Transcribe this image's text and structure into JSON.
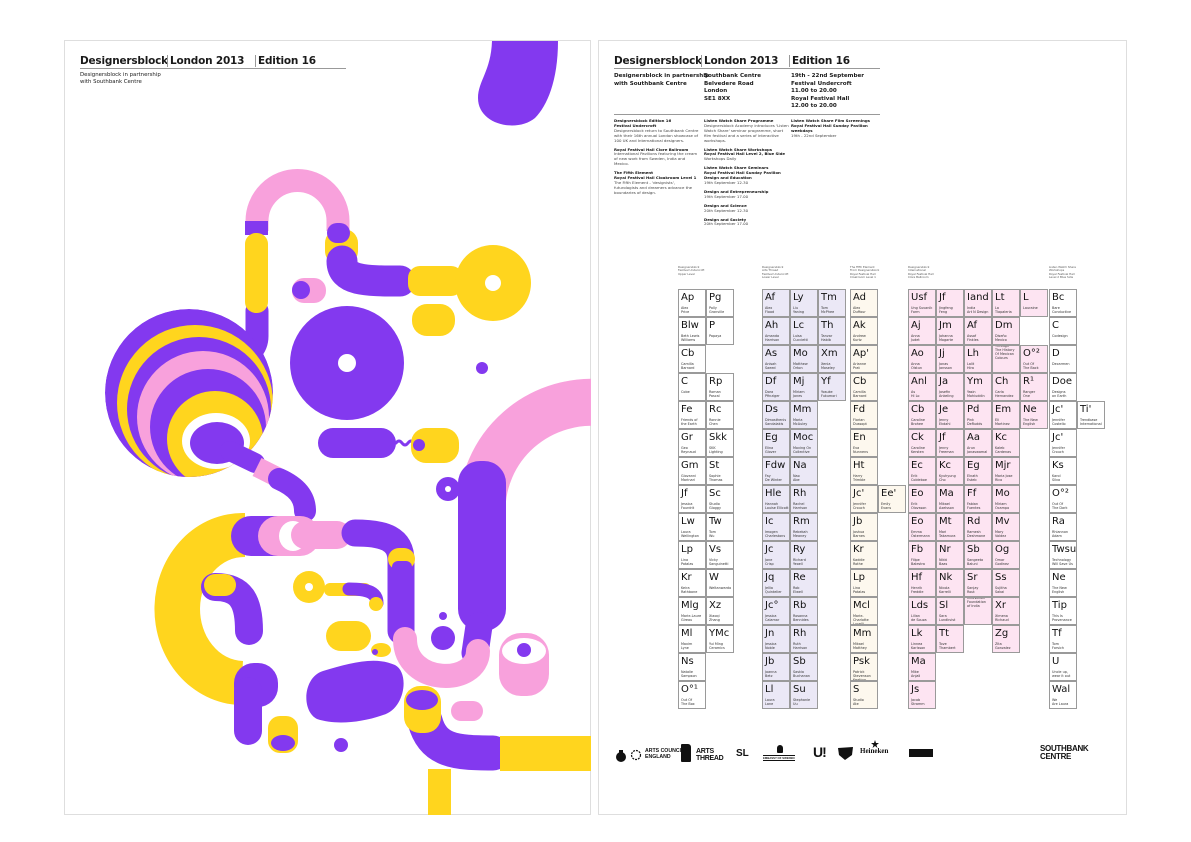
{
  "colors": {
    "purple": "#8339ef",
    "yellow": "#ffd51e",
    "pink": "#f8a1dc",
    "group_purple": "#ebe8f6",
    "group_cream": "#fdf8ee",
    "group_pink": "#fde4f2"
  },
  "left_poster": {
    "header": [
      "Designersblock",
      "London 2013",
      "Edition 16"
    ],
    "subtitle": "Designersblock in partnership\nwith Southbank Centre"
  },
  "right_poster": {
    "header": [
      "Designersblock",
      "London 2013",
      "Edition 16"
    ],
    "partnership": "Designersblock in partnership\nwith Southbank Centre",
    "address": "Southbank Centre\nBelvedere Road\nLondon\nSE1 8XX",
    "dates": "19th - 22nd September\nFestival Undercroft\n11.00 to 20.00\nRoyal Festival Hall\n12.00 to 20.00",
    "info_col1": [
      {
        "title": "Designersblock Edition 16\nFestival Undercroft",
        "text": "Designersblock return to Southbank Centre with their 16th annual London showcase of 100 UK and International designers."
      },
      {
        "title": "Royal Festival Hall Clore Ballroom",
        "text": "International Pavilions featuring the cream of new work from Sweden, India and Mexico."
      },
      {
        "title": "The Fifth Element\nRoyal Festival Hall Cloakroom Level 1",
        "text": "The Fifth Element - 'designists', futurologists and dreamers advance the boundaries of design."
      }
    ],
    "info_col2": [
      {
        "title": "Listen Watch Share Programme",
        "text": "Designersblock Academy introduces 'Listen Watch Share' seminar programme, short film festival and a series of interactive workshops."
      },
      {
        "title": "Listen Watch Share Workshops\nRoyal Festival Hall Level 2, Blue Side",
        "text": "Workshops Daily"
      },
      {
        "title": "Listen Watch Share Seminars\nRoyal Festival Hall Sunday Pavilion\nDesign and Education",
        "text": "19th September 12.30"
      },
      {
        "title": "Design and Entrepreneurship",
        "text": "19th September 17.00"
      },
      {
        "title": "Design and Science",
        "text": "20th September 12.30"
      },
      {
        "title": "Design and Society",
        "text": "20th September 17.00"
      }
    ],
    "info_col3": [
      {
        "title": "Listen Watch Share Film Screenings\nRoyal Festival Hall Sunday Pavilion\nweekdays",
        "text": "19th - 22nd September"
      }
    ],
    "table_captions": [
      "Designersblock\nFestival Undercroft\nUpper Level",
      "Designersblock\nArts Thread\nFestival Undercroft\nLower Level",
      "The Fifth Element\nFrom Designersblock\nRoyal Festival Hall\nCloakroom Level 1",
      "Designersblock\nInternational\nRoyal Festival Hall\nClore Ballroom",
      "Listen Watch Share\nWorkshops\nRoyal Festival Hall\nLevel 2 Blue Side"
    ],
    "table_columns": [
      {
        "group": "white",
        "cells": [
          [
            "Ap",
            "Alex\nPrice"
          ],
          [
            "Blw",
            "Beth Lewis\nWilliams"
          ],
          [
            "Cb",
            "Camilla\nBarnard"
          ],
          [
            "C",
            "Cobe"
          ],
          [
            "Fe",
            "Friends of\nthe Earth"
          ],
          [
            "Gr",
            "Geo\nReynaud"
          ],
          [
            "Gm",
            "Giovanni\nMarinari"
          ],
          [
            "Jf",
            "Jessica\nFourdrit"
          ],
          [
            "Lw",
            "Laura\nWellington"
          ],
          [
            "Lp",
            "Lina\nPatalas"
          ],
          [
            "Kr",
            "Keira\nRathbone"
          ],
          [
            "Mlg",
            "Marie-Laure\nGireau"
          ],
          [
            "Ml",
            "Maxim\nLyne"
          ],
          [
            "Ns",
            "Natalie\nSampson"
          ],
          [
            "O°¹",
            "Out Of\nThe Box"
          ]
        ]
      },
      {
        "group": "white",
        "cells": [
          [
            "Pg",
            "Polly\nGranville"
          ],
          [
            "P",
            "Papaya"
          ],
          null,
          [
            "Rp",
            "Roman\nPascal"
          ],
          [
            "Rc",
            "Ronnie\nChen"
          ],
          [
            "Skk",
            "SKK\nLighting"
          ],
          [
            "St",
            "Sophie\nThomas"
          ],
          [
            "Sc",
            "Studio\nGloggy"
          ],
          [
            "Tw",
            "Tom\nWu"
          ],
          [
            "Vs",
            "Vicky\nSanguinetti"
          ],
          [
            "W",
            "Weltanwardo"
          ],
          [
            "Xz",
            "Xiaoqi\nZhang"
          ],
          [
            "YMc",
            "Yui Ming\nCeramics"
          ]
        ]
      },
      {
        "group": "purple",
        "cells": [
          [
            "Af",
            "Alex\nFlood"
          ],
          [
            "Ah",
            "Amanda\nHarrison"
          ],
          [
            "As",
            "Anisah\nSaeed"
          ],
          [
            "Df",
            "Dora\nPfinziger"
          ],
          [
            "Ds",
            "Dimosthenis\nSandalakis"
          ],
          [
            "Eg",
            "Elina\nGlover"
          ],
          [
            "Fdw",
            "Fay\nDe Winter"
          ],
          [
            "Hle",
            "Hannah\nLouise Ellicott"
          ],
          [
            "Ic",
            "Imogen\nCharlestons"
          ],
          [
            "Jc",
            "Jane\nCrisp"
          ],
          [
            "Jq",
            "Jellia\nQuintelier"
          ],
          [
            "Jc°",
            "Jessica\nCalamar"
          ],
          [
            "Jn",
            "Jessica\nNoble"
          ],
          [
            "Jb",
            "Joanna\nBetz"
          ],
          [
            "Ll",
            "Laura\nLane"
          ]
        ]
      },
      {
        "group": "purple",
        "cells": [
          [
            "Ly",
            "Liu\nYaning"
          ],
          [
            "Lc",
            "Luisa\nCuccietti"
          ],
          [
            "Mo",
            "Matthew\nOrton"
          ],
          [
            "Mj",
            "Miriam\nJones"
          ],
          [
            "Mm",
            "Maria\nMcAuley"
          ],
          [
            "Moc",
            "Moving On\nCollective"
          ],
          [
            "Na",
            "Nao\nAbe"
          ],
          [
            "Rh",
            "Rachel\nHarrison"
          ],
          [
            "Rm",
            "Rebekah\nMeaney"
          ],
          [
            "Ry",
            "Richard\nYeoell"
          ],
          [
            "Re",
            "Rob\nElwell"
          ],
          [
            "Rb",
            "Rosanna\nBennides"
          ],
          [
            "Rh",
            "Ruth\nHarrison"
          ],
          [
            "Sb",
            "Saskia\nBuchanan"
          ],
          [
            "Su",
            "Stephanie\nUu"
          ]
        ]
      },
      {
        "group": "purple",
        "cells": [
          [
            "Tm",
            "Tom\nMcPhee"
          ],
          [
            "Th",
            "Tanvar\nHabib"
          ],
          [
            "Xm",
            "Xenia\nMoseley"
          ],
          [
            "Yf",
            "Yosuke\nFukumori"
          ]
        ]
      },
      {
        "group": "cream",
        "cells": [
          [
            "Ad",
            "Alex\nDuffour"
          ],
          [
            "Ak",
            "Andrew\nKurtz"
          ],
          [
            "Ap'",
            "Arianne\nPrat"
          ],
          [
            "Cb",
            "Camilla\nBarnard"
          ],
          [
            "Fd",
            "Florian\nDussopt"
          ],
          [
            "En",
            "Eva\nNunnens"
          ],
          [
            "Ht",
            "Harry\nTrimble"
          ],
          [
            "Jc'",
            "Jennifer\nCrouch"
          ],
          [
            "Jb",
            "Joshua\nBarnes"
          ],
          [
            "Kr",
            "Kaddie\nRothe"
          ],
          [
            "Lp",
            "Lina\nPatalas"
          ],
          [
            "Mcl",
            "Marie-\nCharlotte\nLucelli"
          ],
          [
            "Mm",
            "Mikael\nMatthey"
          ],
          [
            "Psk",
            "Patrick\nStevenson\nKeating"
          ],
          [
            "S",
            "Studio\nAte"
          ]
        ]
      },
      {
        "group": "cream",
        "cells": [
          null,
          null,
          null,
          null,
          null,
          null,
          null,
          [
            "Ee'",
            "Emily\nEvans"
          ]
        ]
      },
      {
        "group": "pink",
        "cells": [
          [
            "Usf",
            "Ung Suvanik\nForm"
          ],
          [
            "Aj",
            "Anna\nJudet"
          ],
          [
            "Ao",
            "Anna\nOlstun"
          ],
          [
            "Anl",
            "As\nHi Lo"
          ],
          [
            "Cb",
            "Caroline\nBrohee"
          ],
          [
            "Ck",
            "Caroline\nKersten"
          ],
          [
            "Ec",
            "Erik\nColdeboe"
          ],
          [
            "Eo",
            "Erik\nOlovsson"
          ],
          [
            "Eo",
            "Emma\nÖstermann"
          ],
          [
            "Fb",
            "Filipe\nBalestra"
          ],
          [
            "Hf",
            "Henrik\nFreddie"
          ],
          [
            "Lds",
            "Lilian\nde Souza"
          ],
          [
            "Lk",
            "Linnea\nKarlsson"
          ],
          [
            "Ma",
            "Mike\nAnjali"
          ],
          [
            "Js",
            "Jacob\nStramm"
          ]
        ]
      },
      {
        "group": "pink",
        "cells": [
          [
            "Jf",
            "Jingfeng\nFeng"
          ],
          [
            "Jm",
            "Johanna\nMogarte"
          ],
          [
            "Jj",
            "Jonas\nJansson"
          ],
          [
            "Ja",
            "Josefin\nAnkeling"
          ],
          [
            "Je",
            "Jenny\nEkdahl"
          ],
          [
            "Jf",
            "Jenny\nFreeman"
          ],
          [
            "Kc",
            "Kyuhyung\nCho"
          ],
          [
            "Ma",
            "Mikael\nAxelsson"
          ],
          [
            "Mt",
            "Mari\nTakamura"
          ],
          [
            "Nr",
            "Nikki\nBaas"
          ],
          [
            "Nk",
            "Nicola\nKarrelli"
          ],
          [
            "Sl",
            "Sara\nLundkvist"
          ],
          [
            "Tt",
            "Tove\nThambert"
          ]
        ]
      },
      {
        "group": "pink",
        "cells": [
          [
            "Iand",
            "India\nArt N Design"
          ],
          [
            "Af",
            "Assaf\nFinkles"
          ],
          [
            "Lh",
            "Lalit\nHira"
          ],
          [
            "Ym",
            "Yasin\nMohiuddin"
          ],
          [
            "Pd",
            "Pink\nDeRudds"
          ],
          [
            "Aa",
            "Arun\nJanaswamal"
          ],
          [
            "Eg",
            "Elnath\nEsteb"
          ],
          [
            "Ff",
            "Fabian\nFuentes"
          ],
          [
            "Rd",
            "Ramesh\nDeshmane"
          ],
          [
            "Sb",
            "Sangeeta\nBaluni"
          ],
          [
            "Sr",
            "Sanjay\nRout"
          ],
          [
            "",
            "National\nInnovation\nFoundation\nof India"
          ]
        ]
      },
      {
        "group": "pink",
        "cells": [
          [
            "Lt",
            "La\nTlapaleria"
          ],
          [
            "Dm",
            "Diseño\nMexico"
          ],
          [
            "",
            "A Journey\nThrough\nThe History\nOf Mexican\nColours"
          ],
          [
            "Ch",
            "Carla\nHernandez"
          ],
          [
            "Em",
            "Eli\nMartinez"
          ],
          [
            "Kc",
            "Kaleb\nCardenas"
          ],
          [
            "Mjr",
            "Maria Jose\nRico"
          ],
          [
            "Mo",
            "Miriam\nOcampo"
          ],
          [
            "Mv",
            "Mary\nValdez"
          ],
          [
            "Og",
            "Omar\nGodinez"
          ],
          [
            "Ss",
            "Sujitha\nSakai"
          ],
          [
            "Xr",
            "Ximena\nRichaud"
          ],
          [
            "Zg",
            "Zita\nGonzalez"
          ]
        ]
      },
      {
        "group": "pink",
        "cells": [
          [
            "L",
            "Lauraine"
          ],
          null,
          [
            "O°²",
            "Out Of\nThe Back"
          ],
          [
            "R¹",
            "Ranger\nOne"
          ],
          [
            "Ne",
            "The New\nEnglish"
          ]
        ]
      },
      {
        "group": "white",
        "cells": [
          [
            "Bc",
            "Bare\nConductive"
          ],
          [
            "C",
            "Codesign"
          ],
          [
            "D",
            "Decarmen"
          ],
          [
            "Doe",
            "Designs\non Earth"
          ],
          [
            "Jc'",
            "Jennifer\nCostello"
          ],
          [
            "Jc'",
            "Jennifer\nCrouch"
          ],
          [
            "Ks",
            "Karol\nSilva"
          ],
          [
            "O°²",
            "Out Of\nThe Dark"
          ],
          [
            "Ra",
            "Rhiannon\nAdam"
          ],
          [
            "Twsu",
            "Technology\nWill Save Us"
          ],
          [
            "Ne",
            "The New\nEnglish"
          ],
          [
            "Tip",
            "This Is\nProvenance"
          ],
          [
            "Tf",
            "Tom\nForsich"
          ],
          [
            "U",
            "Uncle up,\nwear it out"
          ],
          [
            "Wal",
            "We\nAre Laura"
          ]
        ]
      },
      {
        "group": "white",
        "cells": [
          null,
          null,
          null,
          null,
          [
            "Ti'",
            "Trendbase\nInternational"
          ]
        ]
      }
    ],
    "logos": {
      "arts_council": "ARTS COUNCIL\nENGLAND",
      "arts_thread": "ARTS\nTHREAD",
      "sl": "SL",
      "embassy": "EMBASSY OF SWEDEN",
      "u": "U!",
      "heineken": "Heineken",
      "southbank": "SOUTHBANK\nCENTRE"
    }
  }
}
